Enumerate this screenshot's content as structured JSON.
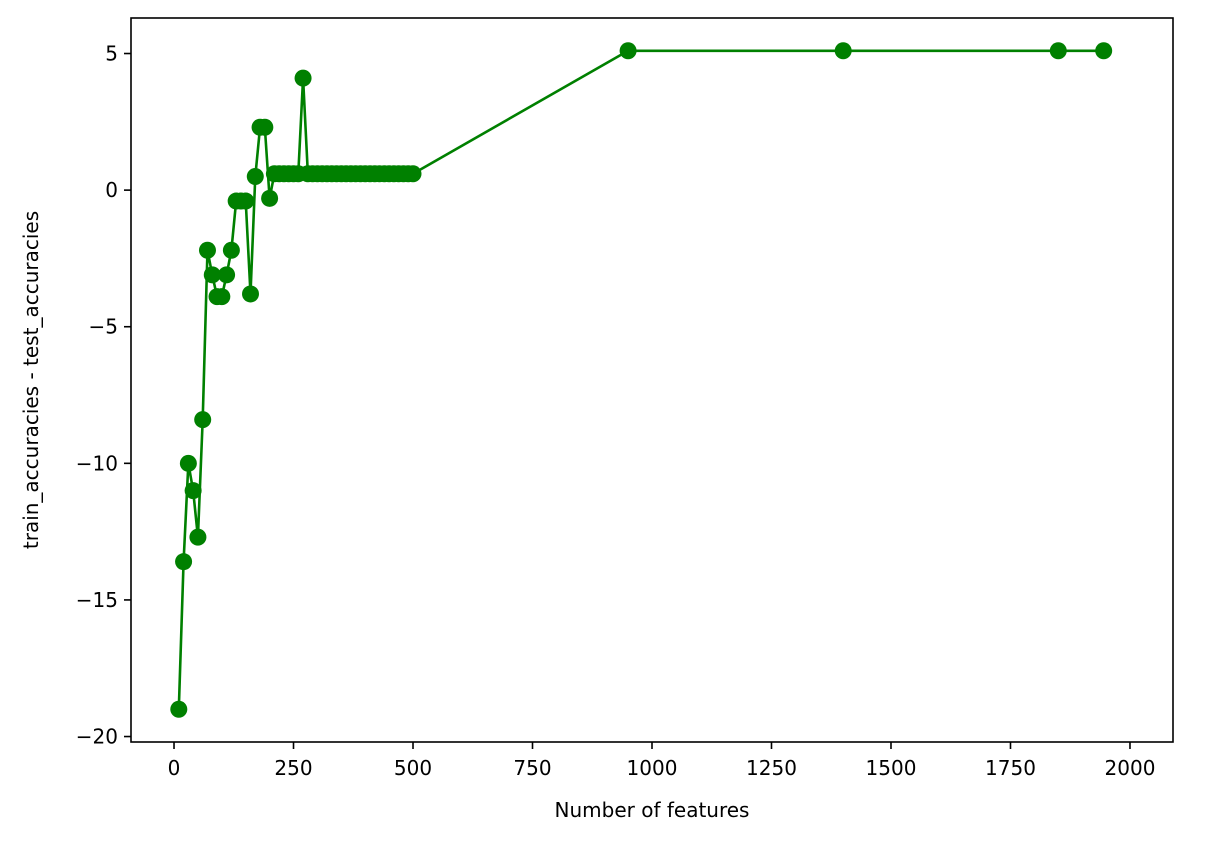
{
  "chart_data": {
    "type": "line",
    "title": "",
    "xlabel": "Number of features",
    "ylabel": "train_accuracies - test_accuracies",
    "xlim": [
      -90,
      2090
    ],
    "ylim": [
      -20.2,
      6.3
    ],
    "xticks": [
      0,
      250,
      500,
      750,
      1000,
      1250,
      1500,
      1750,
      2000
    ],
    "xtick_labels": [
      "0",
      "250",
      "500",
      "750",
      "1000",
      "1250",
      "1500",
      "1750",
      "2000"
    ],
    "yticks": [
      5,
      0,
      -5,
      -10,
      -15,
      -20
    ],
    "ytick_labels": [
      "5",
      "0",
      "−5",
      "−10",
      "−15",
      "−20"
    ],
    "grid": false,
    "legend": "none",
    "series": [
      {
        "color": "#008000",
        "marker": "circle",
        "x": [
          10,
          20,
          30,
          40,
          50,
          60,
          70,
          80,
          90,
          100,
          110,
          120,
          130,
          140,
          150,
          160,
          170,
          180,
          190,
          200,
          210,
          220,
          230,
          240,
          250,
          260,
          270,
          280,
          290,
          300,
          310,
          320,
          330,
          340,
          350,
          360,
          370,
          380,
          390,
          400,
          410,
          420,
          430,
          440,
          450,
          460,
          470,
          480,
          490,
          500,
          950,
          1400,
          1850,
          1945
        ],
        "y": [
          -19.0,
          -13.6,
          -10.0,
          -11.0,
          -12.7,
          -8.4,
          -2.2,
          -3.1,
          -3.9,
          -3.9,
          -3.1,
          -2.2,
          -0.4,
          -0.4,
          -0.4,
          -3.8,
          0.5,
          2.3,
          2.3,
          -0.3,
          0.6,
          0.6,
          0.6,
          0.6,
          0.6,
          0.6,
          4.1,
          0.6,
          0.6,
          0.6,
          0.6,
          0.6,
          0.6,
          0.6,
          0.6,
          0.6,
          0.6,
          0.6,
          0.6,
          0.6,
          0.6,
          0.6,
          0.6,
          0.6,
          0.6,
          0.6,
          0.6,
          0.6,
          0.6,
          0.6,
          5.1,
          5.1,
          5.1,
          5.1
        ]
      }
    ]
  }
}
